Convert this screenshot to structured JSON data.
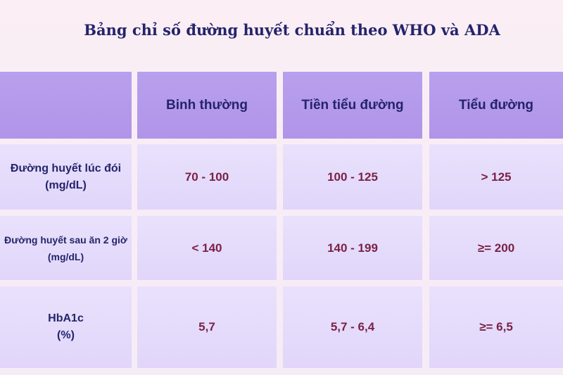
{
  "header": {
    "title": "Bảng chỉ số đường huyết chuẩn theo WHO và ADA"
  },
  "table": {
    "columns": [
      "Binh thường",
      "Tiền tiểu đường",
      "Tiểu đường"
    ],
    "rows": [
      {
        "label": [
          "Đường huyết lúc đói",
          "(mg/dL)"
        ],
        "values": [
          "70 - 100",
          "100 - 125",
          "> 125"
        ]
      },
      {
        "label": [
          "Đường huyết sau ăn 2 giờ",
          "(mg/dL)"
        ],
        "values": [
          "< 140",
          "140 - 199",
          "≥= 200"
        ]
      },
      {
        "label": [
          "HbA1c",
          "(%)"
        ],
        "values": [
          "5,7",
          "5,7 - 6,4",
          "≥= 6,5"
        ]
      }
    ]
  }
}
